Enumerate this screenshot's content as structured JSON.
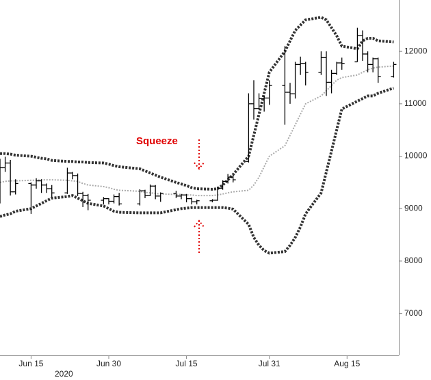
{
  "chart_data": {
    "type": "ohlc",
    "annotation": "Squeeze",
    "x_sublabel": "2020",
    "xlim": [
      "2020-06-09",
      "2020-08-25"
    ],
    "xticks": [
      {
        "value": "2020-06-15",
        "label": "Jun 15"
      },
      {
        "value": "2020-06-30",
        "label": "Jun 30"
      },
      {
        "value": "2020-07-15",
        "label": "Jul 15"
      },
      {
        "value": "2020-07-31",
        "label": "Jul 31"
      },
      {
        "value": "2020-08-15",
        "label": "Aug 15"
      }
    ],
    "ylim": [
      6200,
      12980
    ],
    "yticks": [
      7000,
      8000,
      9000,
      10000,
      11000,
      12000
    ],
    "color": "#000000",
    "x": [
      "2020-06-09",
      "2020-06-10",
      "2020-06-11",
      "2020-06-12",
      "2020-06-15",
      "2020-06-16",
      "2020-06-17",
      "2020-06-18",
      "2020-06-19",
      "2020-06-22",
      "2020-06-23",
      "2020-06-24",
      "2020-06-25",
      "2020-06-26",
      "2020-06-29",
      "2020-06-30",
      "2020-07-01",
      "2020-07-02",
      "2020-07-06",
      "2020-07-07",
      "2020-07-08",
      "2020-07-09",
      "2020-07-10",
      "2020-07-13",
      "2020-07-14",
      "2020-07-15",
      "2020-07-16",
      "2020-07-17",
      "2020-07-20",
      "2020-07-21",
      "2020-07-22",
      "2020-07-23",
      "2020-07-24",
      "2020-07-27",
      "2020-07-28",
      "2020-07-29",
      "2020-07-30",
      "2020-07-31",
      "2020-08-03",
      "2020-08-04",
      "2020-08-05",
      "2020-08-06",
      "2020-08-07",
      "2020-08-10",
      "2020-08-11",
      "2020-08-12",
      "2020-08-13",
      "2020-08-14",
      "2020-08-17",
      "2020-08-18",
      "2020-08-19",
      "2020-08-20",
      "2020-08-21",
      "2020-08-24"
    ],
    "open": [
      9700,
      9780,
      9870,
      9320,
      9480,
      9450,
      9530,
      9450,
      9380,
      9300,
      9680,
      9630,
      9290,
      9250,
      9160,
      9190,
      9140,
      9230,
      9090,
      9340,
      9250,
      9430,
      9240,
      9290,
      9240,
      9260,
      9190,
      9130,
      9150,
      9160,
      9390,
      9520,
      9600,
      9900,
      11000,
      10910,
      11100,
      11110,
      11350,
      11220,
      11190,
      11750,
      11770,
      11600,
      11880,
      11410,
      11580,
      11780,
      11800,
      12300,
      11950,
      11750,
      11860,
      11520
    ],
    "high": [
      9950,
      9990,
      9930,
      9560,
      9500,
      9580,
      9560,
      9480,
      9450,
      9780,
      9700,
      9670,
      9320,
      9280,
      9220,
      9200,
      9270,
      9300,
      9370,
      9360,
      9460,
      9450,
      9310,
      9340,
      9280,
      9280,
      9210,
      9170,
      9180,
      9420,
      9540,
      9660,
      9640,
      11200,
      11450,
      11200,
      11160,
      11450,
      12100,
      11400,
      11800,
      11900,
      11800,
      12000,
      12000,
      11650,
      11800,
      11880,
      12450,
      12400,
      12000,
      11880,
      11880,
      11800
    ],
    "low": [
      9100,
      9700,
      9250,
      9270,
      8900,
      9380,
      9300,
      9300,
      9220,
      9280,
      9560,
      9240,
      9030,
      8970,
      9080,
      9080,
      9100,
      9060,
      9060,
      9200,
      9240,
      9180,
      9130,
      9200,
      9180,
      9120,
      9080,
      9080,
      9120,
      9150,
      9360,
      9480,
      9500,
      9880,
      10700,
      10890,
      10850,
      10980,
      10600,
      11000,
      11100,
      11550,
      11350,
      11550,
      11150,
      11200,
      11550,
      11650,
      11800,
      11820,
      11600,
      11600,
      11400,
      11500
    ],
    "close": [
      9780,
      9870,
      9320,
      9480,
      9450,
      9530,
      9450,
      9380,
      9300,
      9680,
      9630,
      9290,
      9250,
      9160,
      9190,
      9140,
      9230,
      9090,
      9340,
      9250,
      9430,
      9240,
      9290,
      9240,
      9260,
      9190,
      9130,
      9150,
      9160,
      9390,
      9520,
      9600,
      9550,
      11000,
      10910,
      11100,
      11110,
      11350,
      11220,
      11190,
      11750,
      11770,
      11600,
      11880,
      11410,
      11580,
      11780,
      11770,
      12300,
      11950,
      11750,
      11860,
      11520,
      11750
    ],
    "bands": [
      {
        "color": "#333333",
        "values": [
          10050,
          10050,
          10040,
          10020,
          10000,
          9980,
          9960,
          9950,
          9920,
          9900,
          9900,
          9890,
          9890,
          9880,
          9870,
          9850,
          9820,
          9800,
          9760,
          9720,
          9680,
          9640,
          9600,
          9500,
          9470,
          9440,
          9400,
          9380,
          9370,
          9380,
          9450,
          9550,
          9650,
          10000,
          10400,
          10800,
          11200,
          11600,
          12000,
          12200,
          12400,
          12500,
          12600,
          12650,
          12600,
          12450,
          12300,
          12100,
          12050,
          12200,
          12250,
          12250,
          12200,
          12180
        ]
      },
      {
        "color": "#aaaaaa",
        "values": [
          9500,
          9520,
          9530,
          9530,
          9540,
          9540,
          9550,
          9550,
          9550,
          9540,
          9530,
          9520,
          9480,
          9450,
          9420,
          9400,
          9370,
          9350,
          9330,
          9310,
          9300,
          9290,
          9280,
          9270,
          9270,
          9260,
          9260,
          9250,
          9250,
          9260,
          9280,
          9300,
          9320,
          9350,
          9450,
          9600,
          9800,
          10000,
          10200,
          10400,
          10600,
          10800,
          11000,
          11150,
          11250,
          11350,
          11450,
          11500,
          11550,
          11600,
          11650,
          11680,
          11700,
          11720
        ]
      },
      {
        "color": "#333333",
        "values": [
          8850,
          8880,
          8900,
          8950,
          9000,
          9050,
          9100,
          9150,
          9200,
          9230,
          9250,
          9200,
          9150,
          9100,
          9050,
          9000,
          8950,
          8930,
          8920,
          8920,
          8920,
          8920,
          8920,
          8980,
          9000,
          9010,
          9020,
          9020,
          9020,
          9020,
          9020,
          9010,
          8990,
          8700,
          8450,
          8300,
          8200,
          8150,
          8180,
          8300,
          8450,
          8650,
          8900,
          9300,
          9700,
          10100,
          10500,
          10900,
          11050,
          11100,
          11150,
          11150,
          11200,
          11300
        ]
      }
    ]
  }
}
